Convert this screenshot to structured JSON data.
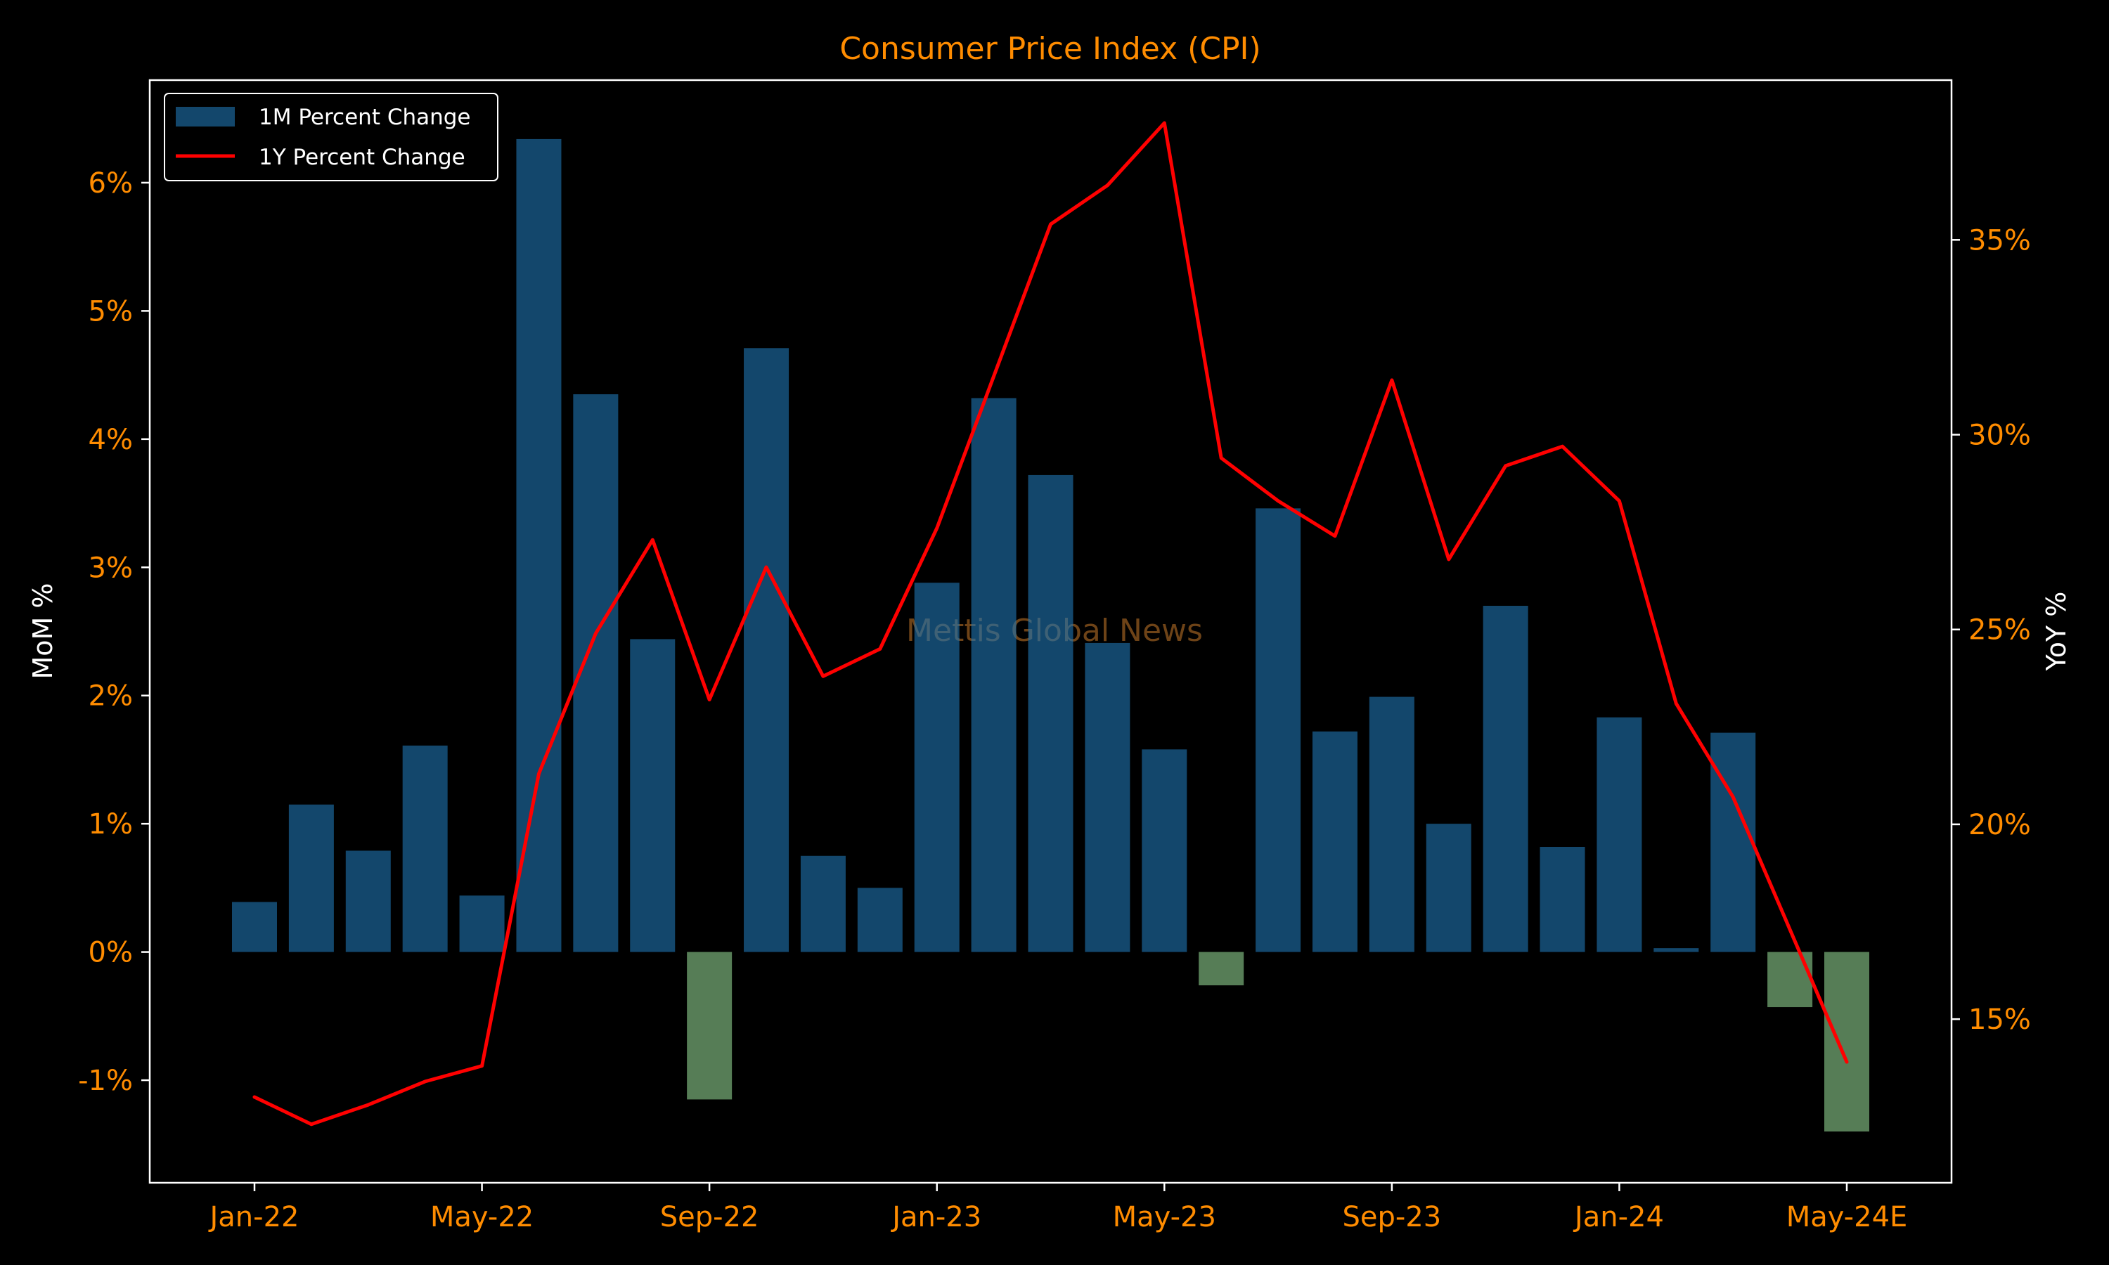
{
  "chart_data": {
    "type": "bar",
    "title": "Consumer Price Index (CPI)",
    "ylabel_left": "MoM %",
    "ylabel_right": "YoY %",
    "watermark": "Mettis Global News",
    "categories": [
      "Jan-22",
      "Feb-22",
      "Mar-22",
      "Apr-22",
      "May-22",
      "Jun-22",
      "Jul-22",
      "Aug-22",
      "Sep-22",
      "Oct-22",
      "Nov-22",
      "Dec-22",
      "Jan-23",
      "Feb-23",
      "Mar-23",
      "Apr-23",
      "May-23",
      "Jun-23",
      "Jul-23",
      "Aug-23",
      "Sep-23",
      "Oct-23",
      "Nov-23",
      "Dec-23",
      "Jan-24",
      "Feb-24",
      "Mar-24",
      "Apr-24",
      "May-24E"
    ],
    "xticks": [
      "Jan-22",
      "May-22",
      "Sep-22",
      "Jan-23",
      "May-23",
      "Sep-23",
      "Jan-24",
      "May-24E"
    ],
    "xtick_indices": [
      0,
      4,
      8,
      12,
      16,
      20,
      24,
      28
    ],
    "ylim_left": [
      -1.8,
      6.8
    ],
    "yticks_left": [
      -1,
      0,
      1,
      2,
      3,
      4,
      5,
      6
    ],
    "yticklabels_left": [
      "-1%",
      "0%",
      "1%",
      "2%",
      "3%",
      "4%",
      "5%",
      "6%"
    ],
    "ylim_right": [
      10.8,
      39.1
    ],
    "yticks_right": [
      15,
      20,
      25,
      30,
      35
    ],
    "yticklabels_right": [
      "15%",
      "20%",
      "25%",
      "30%",
      "35%"
    ],
    "legend_position": "upper-left",
    "series": [
      {
        "name": "1M Percent Change",
        "type": "bar",
        "axis": "left",
        "values": [
          0.39,
          1.15,
          0.79,
          1.61,
          0.44,
          6.34,
          4.35,
          2.44,
          -1.15,
          4.71,
          0.75,
          0.5,
          2.88,
          4.32,
          3.72,
          2.41,
          1.58,
          -0.26,
          3.46,
          1.72,
          1.99,
          1.0,
          2.7,
          0.82,
          1.83,
          0.03,
          1.71,
          -0.43,
          -1.4
        ]
      },
      {
        "name": "1Y Percent Change",
        "type": "line",
        "axis": "right",
        "values": [
          13.0,
          12.3,
          12.8,
          13.4,
          13.8,
          21.3,
          24.9,
          27.3,
          23.2,
          26.6,
          23.8,
          24.5,
          27.6,
          31.5,
          35.4,
          36.4,
          38.0,
          29.4,
          28.3,
          27.4,
          31.4,
          26.8,
          29.2,
          29.7,
          28.3,
          23.1,
          20.7,
          17.3,
          13.9
        ]
      }
    ]
  },
  "colors": {
    "background": "#000000",
    "title": "#ff8c00",
    "ticklabels": "#ff8c00",
    "axis_label": "#ffffff",
    "spines": "#ffffff",
    "bar_positive": "#1f77b4",
    "bar_negative": "#8fd18f",
    "bar_alpha": 0.6,
    "line": "#ff0000",
    "watermark": "#7a4a1a",
    "legend_border": "#ffffff"
  }
}
